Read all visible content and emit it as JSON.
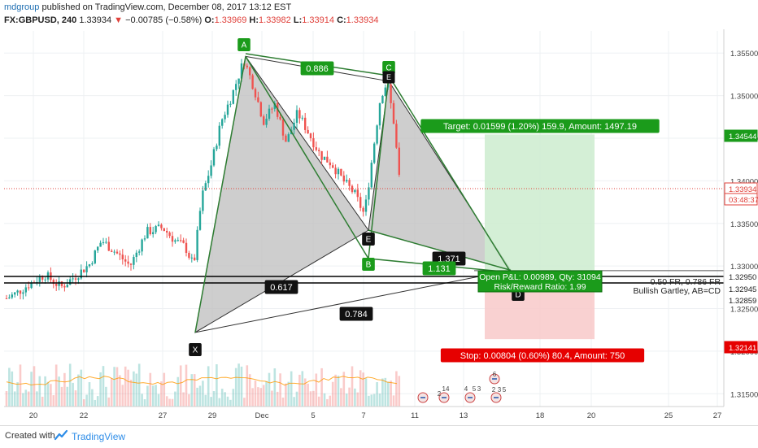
{
  "header": {
    "user": "mdgroup",
    "published_text": " published on TradingView.com, December 08, 2017 13:12 EST",
    "symbol": "FX:GBPUSD, 240",
    "last": "1.33934",
    "change": "−0.00785 (−0.58%)",
    "o_label": "O:",
    "o": "1.33969",
    "h_label": "H:",
    "h": "1.33982",
    "l_label": "L:",
    "l": "1.33914",
    "c_label": "C:",
    "c": "1.33934"
  },
  "footer": {
    "created_text": "Created with",
    "brand": "TradingView"
  },
  "colors": {
    "up": "#26a69a",
    "down": "#ef5350",
    "pattern_line": "#2e7d32",
    "pattern_fill": "#c8c8c8",
    "target_zone": "#cdeccf",
    "stop_zone": "#f8c9c9",
    "badge_green": "#1b9b1b",
    "badge_red": "#e60000"
  },
  "chart_data": {
    "type": "candlestick",
    "symbol": "FX:GBPUSD",
    "timeframe": "240",
    "y_axis": {
      "range": [
        1.3135,
        1.3576
      ],
      "tick_labels": [
        "1.35500",
        "1.35000",
        "1.34500",
        "1.34000",
        "1.33500",
        "1.33000",
        "1.32500",
        "1.32000",
        "1.31500"
      ],
      "price_tags": [
        {
          "label": "1.34544",
          "value": 1.34544,
          "style": "green"
        },
        {
          "label": "1.33934",
          "value": 1.33934,
          "style": "red-outline"
        },
        {
          "label": "03:48:37",
          "value": 1.33745,
          "style": "red-outline"
        },
        {
          "label": "1.32950",
          "value": 1.3295,
          "style": "plain"
        },
        {
          "label": "1.32945",
          "value": 1.32945,
          "style": "plain"
        },
        {
          "label": "1.32859",
          "value": 1.32859,
          "style": "plain"
        },
        {
          "label": "1.32141",
          "value": 1.32141,
          "style": "red"
        }
      ]
    },
    "x_axis": {
      "tick_labels": [
        "20",
        "22",
        "27",
        "29",
        "Dec",
        "5",
        "7",
        "11",
        "13",
        "18",
        "20",
        "25",
        "27"
      ]
    },
    "harmonic_pattern": {
      "name": "Bullish Gartley, AB=CD",
      "points": [
        {
          "label": "X",
          "price": 1.3222
        },
        {
          "label": "A",
          "price": 1.3546
        },
        {
          "label": "B",
          "price": 1.3342
        },
        {
          "label": "C",
          "price": 1.3517
        },
        {
          "label": "D",
          "price": 1.3295
        }
      ],
      "ratios": [
        {
          "label": "0.886"
        },
        {
          "label": "0.617"
        },
        {
          "label": "0.784"
        },
        {
          "label": "1.371"
        },
        {
          "label": "1.131"
        }
      ],
      "fib_note": "0.50 FR, 0.786 FR"
    },
    "position": {
      "target_label": "Target: 0.01599 (1.20%) 159.9, Amount: 1497.19",
      "stop_label": "Stop: 0.00804 (0.60%) 80.4, Amount: 750",
      "pnl_label": "Open P&L: 0.00989, Qty: 31094",
      "rr_label": "Risk/Reward Ratio: 1.99",
      "entry": 1.32945,
      "target": 1.34544,
      "stop": 1.32141
    },
    "event_labels": [
      "6",
      "14",
      "2",
      "4",
      "5",
      "3",
      "2",
      "3",
      "5"
    ]
  }
}
